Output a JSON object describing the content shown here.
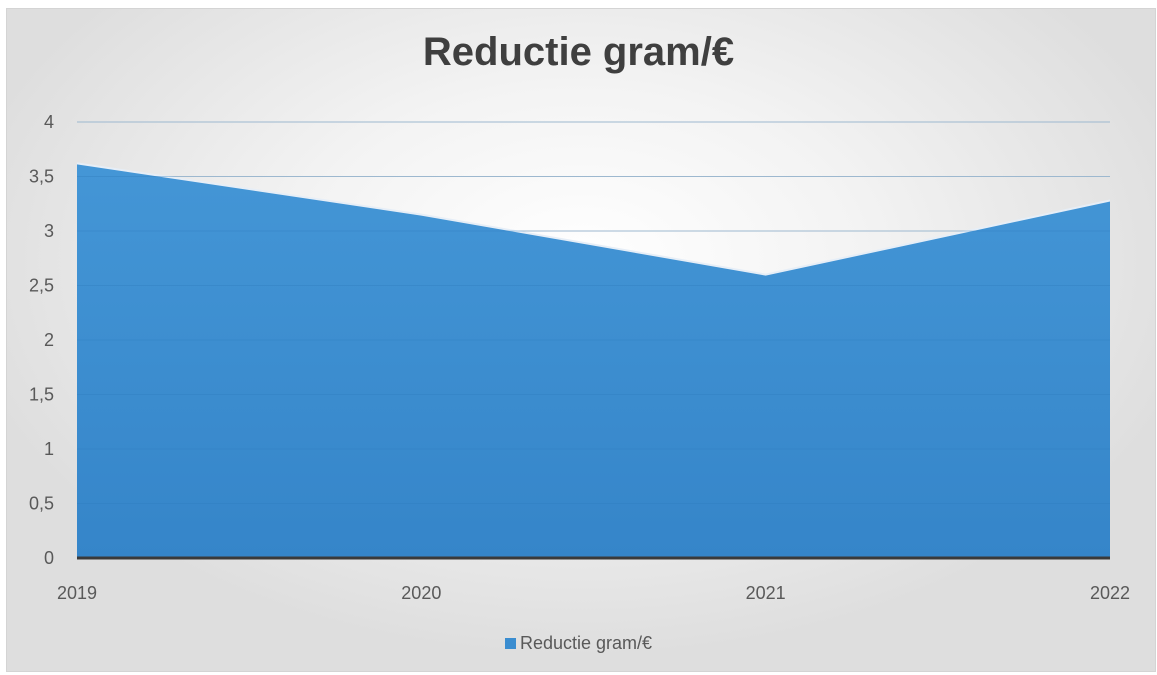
{
  "chart_data": {
    "type": "area",
    "title": "Reductie gram/€",
    "xlabel": "",
    "ylabel": "",
    "categories": [
      "2019",
      "2020",
      "2021",
      "2022"
    ],
    "series": [
      {
        "name": "Reductie gram/€",
        "values": [
          3.62,
          3.15,
          2.6,
          3.28
        ],
        "color": "#3a8dd0"
      }
    ],
    "ylim": [
      0,
      4
    ],
    "yticks": [
      "0",
      "0,5",
      "1",
      "1,5",
      "2",
      "2,5",
      "3",
      "3,5",
      "4"
    ],
    "grid": true,
    "legend_position": "bottom"
  }
}
